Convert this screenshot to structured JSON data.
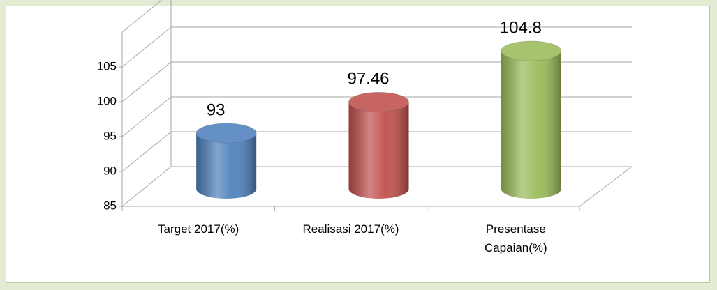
{
  "chart_data": {
    "type": "bar3d",
    "categories": [
      "Target 2017(%)",
      "Realisasi 2017(%)",
      "Presentase Capaian(%)"
    ],
    "values": [
      93,
      97.46,
      104.8
    ],
    "colors": [
      "#4f81bd",
      "#c0504d",
      "#9bbb59"
    ],
    "ylim": [
      85,
      110
    ],
    "yticks": [
      85,
      90,
      95,
      100,
      105
    ],
    "grid": true
  }
}
